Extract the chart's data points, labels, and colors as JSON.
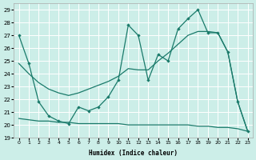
{
  "bg_color": "#cceee8",
  "line_color": "#1a7a6a",
  "grid_color": "#ffffff",
  "xlim": [
    -0.5,
    23.5
  ],
  "ylim": [
    19,
    29.5
  ],
  "xlabel": "Humidex (Indice chaleur)",
  "lA_x": [
    0,
    1,
    2,
    3,
    4,
    5,
    6,
    7,
    8,
    9,
    10,
    11,
    12,
    13,
    14,
    15,
    16,
    17,
    18,
    19,
    20,
    21,
    22,
    23
  ],
  "lA_y": [
    27.0,
    24.8,
    21.8,
    20.7,
    20.3,
    20.1,
    21.4,
    21.1,
    21.4,
    22.2,
    23.5,
    27.8,
    27.0,
    23.5,
    25.5,
    25.0,
    27.5,
    28.3,
    29.0,
    27.2,
    27.2,
    25.7,
    21.8,
    19.5
  ],
  "lB_x": [
    0,
    1,
    2,
    3,
    4,
    5,
    6,
    7,
    8,
    9,
    10,
    11,
    12,
    13,
    14,
    15,
    16,
    17,
    18,
    19,
    20,
    21,
    22,
    23
  ],
  "lB_y": [
    24.8,
    24.0,
    23.3,
    22.8,
    22.5,
    22.3,
    22.5,
    22.8,
    23.1,
    23.4,
    23.8,
    24.4,
    24.3,
    24.3,
    25.0,
    25.6,
    26.3,
    27.0,
    27.3,
    27.3,
    27.2,
    25.7,
    21.8,
    19.5
  ],
  "lC_x": [
    0,
    1,
    2,
    3,
    4,
    5,
    6,
    7,
    8,
    9,
    10,
    11,
    12,
    13,
    14,
    15,
    16,
    17,
    18,
    19,
    20,
    21,
    22,
    23
  ],
  "lC_y": [
    20.5,
    20.4,
    20.3,
    20.3,
    20.2,
    20.2,
    20.1,
    20.1,
    20.1,
    20.1,
    20.1,
    20.0,
    20.0,
    20.0,
    20.0,
    20.0,
    20.0,
    20.0,
    19.9,
    19.9,
    19.8,
    19.8,
    19.7,
    19.5
  ]
}
